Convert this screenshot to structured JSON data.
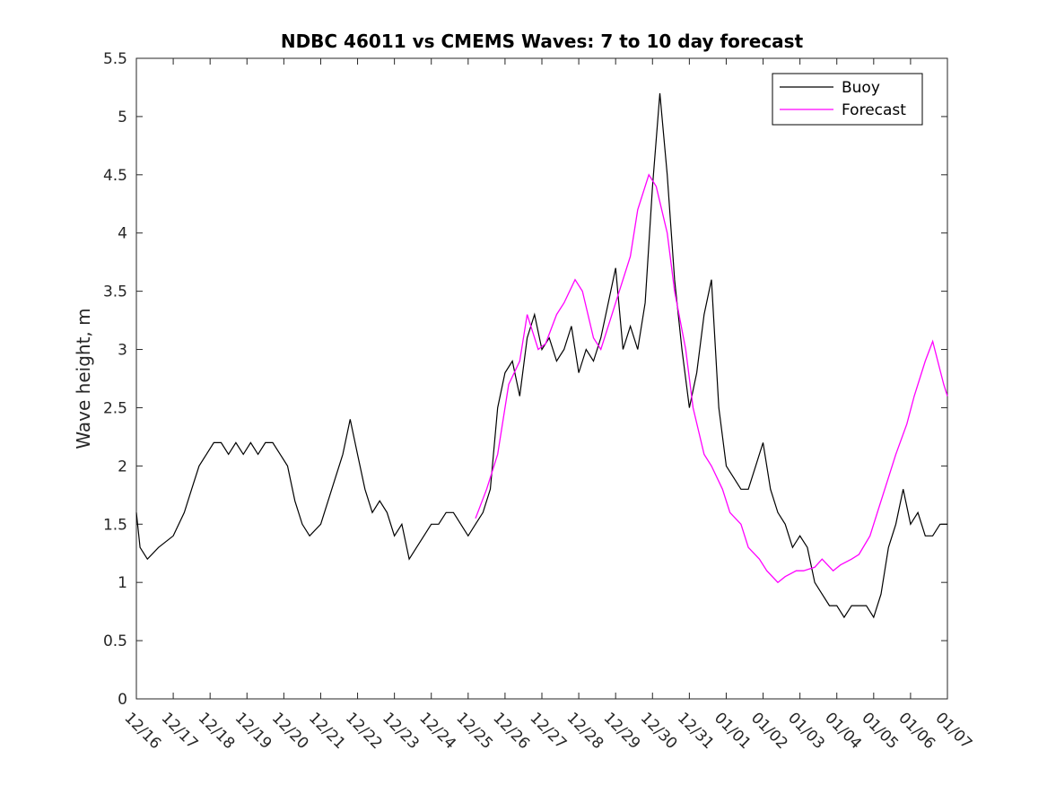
{
  "chart_data": {
    "type": "line",
    "title": "NDBC 46011 vs CMEMS Waves: 7 to 10 day forecast",
    "xlabel": "",
    "ylabel": "Wave height, m",
    "xlim": [
      0,
      22
    ],
    "ylim": [
      0,
      5.5
    ],
    "yticks": [
      "0",
      "0.5",
      "1",
      "1.5",
      "2",
      "2.5",
      "3",
      "3.5",
      "4",
      "4.5",
      "5",
      "5.5"
    ],
    "xtick_labels": [
      "12/16",
      "12/17",
      "12/18",
      "12/19",
      "12/20",
      "12/21",
      "12/22",
      "12/23",
      "12/24",
      "12/25",
      "12/26",
      "12/27",
      "12/28",
      "12/29",
      "12/30",
      "12/31",
      "01/01",
      "01/02",
      "01/03",
      "01/04",
      "01/05",
      "01/06",
      "01/07"
    ],
    "legend": {
      "position": "top-right",
      "entries": [
        "Buoy",
        "Forecast"
      ]
    },
    "colors": {
      "buoy": "#000000",
      "forecast": "#ff00ff"
    },
    "series": [
      {
        "name": "Buoy",
        "points": [
          [
            0,
            1.6
          ],
          [
            0.1,
            1.3
          ],
          [
            0.3,
            1.2
          ],
          [
            0.6,
            1.3
          ],
          [
            1,
            1.4
          ],
          [
            1.3,
            1.6
          ],
          [
            1.5,
            1.8
          ],
          [
            1.7,
            2.0
          ],
          [
            1.9,
            2.1
          ],
          [
            2.1,
            2.2
          ],
          [
            2.3,
            2.2
          ],
          [
            2.5,
            2.1
          ],
          [
            2.7,
            2.2
          ],
          [
            2.9,
            2.1
          ],
          [
            3.1,
            2.2
          ],
          [
            3.3,
            2.1
          ],
          [
            3.5,
            2.2
          ],
          [
            3.7,
            2.2
          ],
          [
            3.9,
            2.1
          ],
          [
            4.1,
            2.0
          ],
          [
            4.3,
            1.7
          ],
          [
            4.5,
            1.5
          ],
          [
            4.7,
            1.4
          ],
          [
            5,
            1.5
          ],
          [
            5.2,
            1.7
          ],
          [
            5.4,
            1.9
          ],
          [
            5.6,
            2.1
          ],
          [
            5.8,
            2.4
          ],
          [
            6.0,
            2.1
          ],
          [
            6.2,
            1.8
          ],
          [
            6.4,
            1.6
          ],
          [
            6.6,
            1.7
          ],
          [
            6.8,
            1.6
          ],
          [
            7.0,
            1.4
          ],
          [
            7.2,
            1.5
          ],
          [
            7.4,
            1.2
          ],
          [
            7.6,
            1.3
          ],
          [
            7.8,
            1.4
          ],
          [
            8.0,
            1.5
          ],
          [
            8.2,
            1.5
          ],
          [
            8.4,
            1.6
          ],
          [
            8.6,
            1.6
          ],
          [
            8.8,
            1.5
          ],
          [
            9.0,
            1.4
          ],
          [
            9.2,
            1.5
          ],
          [
            9.4,
            1.6
          ],
          [
            9.6,
            1.8
          ],
          [
            9.8,
            2.5
          ],
          [
            10.0,
            2.8
          ],
          [
            10.2,
            2.9
          ],
          [
            10.4,
            2.6
          ],
          [
            10.6,
            3.1
          ],
          [
            10.8,
            3.3
          ],
          [
            11.0,
            3.0
          ],
          [
            11.2,
            3.1
          ],
          [
            11.4,
            2.9
          ],
          [
            11.6,
            3.0
          ],
          [
            11.8,
            3.2
          ],
          [
            12.0,
            2.8
          ],
          [
            12.2,
            3.0
          ],
          [
            12.4,
            2.9
          ],
          [
            12.6,
            3.1
          ],
          [
            12.8,
            3.4
          ],
          [
            13.0,
            3.7
          ],
          [
            13.2,
            3.0
          ],
          [
            13.4,
            3.2
          ],
          [
            13.6,
            3.0
          ],
          [
            13.8,
            3.4
          ],
          [
            14.0,
            4.4
          ],
          [
            14.2,
            5.2
          ],
          [
            14.4,
            4.5
          ],
          [
            14.6,
            3.6
          ],
          [
            14.8,
            3.0
          ],
          [
            15.0,
            2.5
          ],
          [
            15.2,
            2.8
          ],
          [
            15.4,
            3.3
          ],
          [
            15.6,
            3.6
          ],
          [
            15.8,
            2.5
          ],
          [
            16.0,
            2.0
          ],
          [
            16.2,
            1.9
          ],
          [
            16.4,
            1.8
          ],
          [
            16.6,
            1.8
          ],
          [
            16.8,
            2.0
          ],
          [
            17.0,
            2.2
          ],
          [
            17.2,
            1.8
          ],
          [
            17.4,
            1.6
          ],
          [
            17.6,
            1.5
          ],
          [
            17.8,
            1.3
          ],
          [
            18.0,
            1.4
          ],
          [
            18.2,
            1.3
          ],
          [
            18.4,
            1.0
          ],
          [
            18.6,
            0.9
          ],
          [
            18.8,
            0.8
          ],
          [
            19.0,
            0.8
          ],
          [
            19.2,
            0.7
          ],
          [
            19.4,
            0.8
          ],
          [
            19.6,
            0.8
          ],
          [
            19.8,
            0.8
          ],
          [
            20.0,
            0.7
          ],
          [
            20.2,
            0.9
          ],
          [
            20.4,
            1.3
          ],
          [
            20.6,
            1.5
          ],
          [
            20.8,
            1.8
          ],
          [
            21.0,
            1.5
          ],
          [
            21.2,
            1.6
          ],
          [
            21.4,
            1.4
          ],
          [
            21.6,
            1.4
          ],
          [
            21.8,
            1.5
          ],
          [
            22.0,
            1.5
          ]
        ]
      },
      {
        "name": "Forecast",
        "points": [
          [
            9.2,
            1.55
          ],
          [
            9.5,
            1.8
          ],
          [
            9.8,
            2.1
          ],
          [
            10.1,
            2.7
          ],
          [
            10.4,
            2.9
          ],
          [
            10.6,
            3.3
          ],
          [
            10.9,
            3.0
          ],
          [
            11.1,
            3.05
          ],
          [
            11.4,
            3.3
          ],
          [
            11.6,
            3.4
          ],
          [
            11.9,
            3.6
          ],
          [
            12.1,
            3.5
          ],
          [
            12.4,
            3.1
          ],
          [
            12.6,
            3.0
          ],
          [
            12.9,
            3.3
          ],
          [
            13.1,
            3.5
          ],
          [
            13.4,
            3.8
          ],
          [
            13.6,
            4.2
          ],
          [
            13.9,
            4.5
          ],
          [
            14.1,
            4.4
          ],
          [
            14.4,
            4.0
          ],
          [
            14.6,
            3.5
          ],
          [
            14.9,
            3.0
          ],
          [
            15.1,
            2.5
          ],
          [
            15.4,
            2.1
          ],
          [
            15.6,
            2.0
          ],
          [
            15.9,
            1.8
          ],
          [
            16.1,
            1.6
          ],
          [
            16.4,
            1.5
          ],
          [
            16.6,
            1.3
          ],
          [
            16.9,
            1.2
          ],
          [
            17.1,
            1.1
          ],
          [
            17.4,
            1.0
          ],
          [
            17.6,
            1.05
          ],
          [
            17.9,
            1.1
          ],
          [
            18.1,
            1.1
          ],
          [
            18.4,
            1.13
          ],
          [
            18.6,
            1.2
          ],
          [
            18.9,
            1.1
          ],
          [
            19.1,
            1.15
          ],
          [
            19.4,
            1.2
          ],
          [
            19.6,
            1.24
          ],
          [
            19.9,
            1.4
          ],
          [
            20.1,
            1.6
          ],
          [
            20.4,
            1.9
          ],
          [
            20.6,
            2.1
          ],
          [
            20.9,
            2.36
          ],
          [
            21.1,
            2.6
          ],
          [
            21.4,
            2.9
          ],
          [
            21.6,
            3.07
          ],
          [
            21.9,
            2.7
          ],
          [
            22.0,
            2.6
          ]
        ]
      }
    ]
  }
}
